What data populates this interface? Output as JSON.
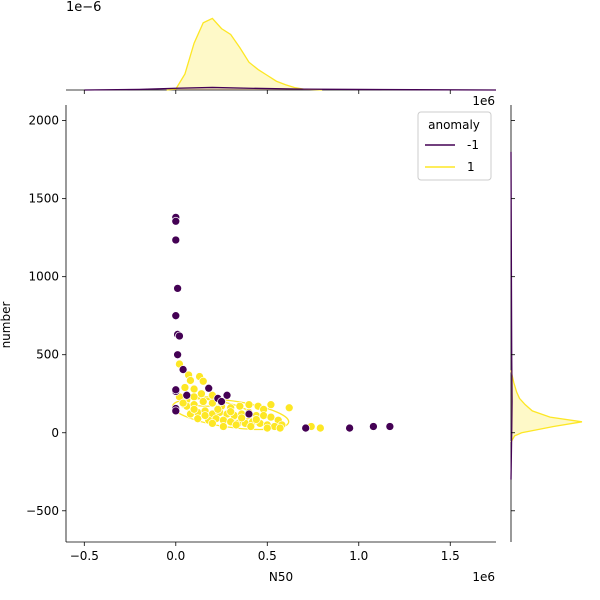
{
  "chart_data": {
    "type": "scatter",
    "title": "",
    "xlabel": "N50",
    "ylabel": "number",
    "x_offset_label": "1e6",
    "y_offset_label": "1e6",
    "top_marginal_offset_label": "1e−6",
    "xlim": [
      -0.6,
      1.75
    ],
    "ylim": [
      -700,
      2100
    ],
    "x_ticks": [
      -0.5,
      0.0,
      0.5,
      1.0,
      1.5
    ],
    "x_tick_labels": [
      "−0.5",
      "0.0",
      "0.5",
      "1.0",
      "1.5"
    ],
    "y_ticks": [
      -500,
      0,
      500,
      1000,
      1500,
      2000
    ],
    "y_tick_labels": [
      "−500",
      "0",
      "500",
      "1000",
      "1500",
      "2000"
    ],
    "grid": false,
    "legend": {
      "title": "anomaly",
      "placement": "top-right",
      "entries": [
        {
          "label": "-1",
          "color": "#440154"
        },
        {
          "label": "1",
          "color": "#fde725"
        }
      ]
    },
    "series": [
      {
        "name": "-1",
        "color": "#440154",
        "points": [
          [
            0.0,
            1380
          ],
          [
            0.0,
            1355
          ],
          [
            0.0,
            1235
          ],
          [
            0.01,
            925
          ],
          [
            0.0,
            750
          ],
          [
            0.01,
            630
          ],
          [
            0.02,
            620
          ],
          [
            0.01,
            500
          ],
          [
            0.04,
            405
          ],
          [
            0.0,
            265
          ],
          [
            0.0,
            275
          ],
          [
            0.0,
            155
          ],
          [
            0.0,
            140
          ],
          [
            0.06,
            240
          ],
          [
            0.18,
            285
          ],
          [
            0.23,
            220
          ],
          [
            0.28,
            240
          ],
          [
            0.25,
            200
          ],
          [
            0.4,
            120
          ],
          [
            0.71,
            30
          ],
          [
            0.95,
            30
          ],
          [
            1.08,
            40
          ],
          [
            1.17,
            40
          ]
        ]
      },
      {
        "name": "1",
        "color": "#fde725",
        "points": [
          [
            0.02,
            440
          ],
          [
            0.07,
            370
          ],
          [
            0.08,
            335
          ],
          [
            0.13,
            360
          ],
          [
            0.05,
            290
          ],
          [
            0.1,
            280
          ],
          [
            0.02,
            230
          ],
          [
            0.06,
            210
          ],
          [
            0.1,
            230
          ],
          [
            0.14,
            250
          ],
          [
            0.2,
            240
          ],
          [
            0.06,
            170
          ],
          [
            0.1,
            180
          ],
          [
            0.15,
            200
          ],
          [
            0.2,
            190
          ],
          [
            0.25,
            170
          ],
          [
            0.3,
            160
          ],
          [
            0.35,
            170
          ],
          [
            0.4,
            180
          ],
          [
            0.45,
            170
          ],
          [
            0.48,
            150
          ],
          [
            0.52,
            180
          ],
          [
            0.08,
            120
          ],
          [
            0.12,
            130
          ],
          [
            0.16,
            140
          ],
          [
            0.2,
            120
          ],
          [
            0.24,
            130
          ],
          [
            0.28,
            120
          ],
          [
            0.32,
            110
          ],
          [
            0.36,
            120
          ],
          [
            0.4,
            130
          ],
          [
            0.44,
            110
          ],
          [
            0.48,
            110
          ],
          [
            0.52,
            100
          ],
          [
            0.56,
            80
          ],
          [
            0.12,
            90
          ],
          [
            0.18,
            80
          ],
          [
            0.22,
            90
          ],
          [
            0.26,
            80
          ],
          [
            0.3,
            70
          ],
          [
            0.34,
            60
          ],
          [
            0.38,
            60
          ],
          [
            0.42,
            70
          ],
          [
            0.46,
            60
          ],
          [
            0.5,
            50
          ],
          [
            0.54,
            40
          ],
          [
            0.58,
            50
          ],
          [
            0.62,
            160
          ],
          [
            0.2,
            60
          ],
          [
            0.26,
            40
          ],
          [
            0.33,
            50
          ],
          [
            0.41,
            40
          ],
          [
            0.5,
            30
          ],
          [
            0.57,
            30
          ],
          [
            0.74,
            40
          ],
          [
            0.79,
            30
          ],
          [
            0.1,
            150
          ],
          [
            0.16,
            110
          ],
          [
            0.23,
            150
          ],
          [
            0.3,
            135
          ],
          [
            0.36,
            95
          ],
          [
            0.44,
            85
          ],
          [
            0.15,
            330
          ],
          [
            0.24,
            210
          ],
          [
            0.04,
            190
          ]
        ]
      }
    ],
    "kde_contours": {
      "anomaly_1": {
        "color": "#fde725",
        "ellipses": [
          {
            "cx": 0.3,
            "cy": 120,
            "rx": 0.32,
            "ry": 85,
            "rotation_deg": 8
          },
          {
            "cx": 0.22,
            "cy": 150,
            "rx": 0.2,
            "ry": 55,
            "rotation_deg": 10
          },
          {
            "cx": 0.17,
            "cy": 200,
            "rx": 0.1,
            "ry": 30,
            "rotation_deg": 0
          }
        ]
      }
    },
    "marginal_x": {
      "unit_scale": "1e−6",
      "kde_anomaly_1": [
        [
          -0.05,
          0.0
        ],
        [
          0.0,
          0.03
        ],
        [
          0.05,
          0.55
        ],
        [
          0.1,
          1.6
        ],
        [
          0.15,
          2.3
        ],
        [
          0.2,
          2.45
        ],
        [
          0.25,
          2.1
        ],
        [
          0.3,
          1.9
        ],
        [
          0.35,
          1.45
        ],
        [
          0.4,
          0.95
        ],
        [
          0.45,
          0.7
        ],
        [
          0.5,
          0.5
        ],
        [
          0.55,
          0.3
        ],
        [
          0.6,
          0.18
        ],
        [
          0.65,
          0.08
        ],
        [
          0.7,
          0.03
        ],
        [
          0.8,
          0.0
        ]
      ],
      "kde_anomaly_minus1": [
        [
          -0.5,
          0.0
        ],
        [
          -0.2,
          0.02
        ],
        [
          0.0,
          0.06
        ],
        [
          0.2,
          0.09
        ],
        [
          0.4,
          0.06
        ],
        [
          0.7,
          0.03
        ],
        [
          1.0,
          0.02
        ],
        [
          1.3,
          0.01
        ],
        [
          1.75,
          0.0
        ]
      ],
      "max": 2.6
    },
    "marginal_y": {
      "kde_anomaly_1": [
        [
          -60,
          0.0
        ],
        [
          -20,
          0.05
        ],
        [
          0,
          0.15
        ],
        [
          40,
          0.6
        ],
        [
          70,
          1.0
        ],
        [
          100,
          0.55
        ],
        [
          140,
          0.3
        ],
        [
          180,
          0.2
        ],
        [
          220,
          0.12
        ],
        [
          260,
          0.08
        ],
        [
          320,
          0.04
        ],
        [
          400,
          0.0
        ]
      ],
      "kde_anomaly_minus1": [
        [
          -300,
          0.0
        ],
        [
          0,
          0.01
        ],
        [
          200,
          0.015
        ],
        [
          500,
          0.01
        ],
        [
          1000,
          0.006
        ],
        [
          1400,
          0.003
        ],
        [
          1800,
          0.0
        ]
      ],
      "max": 1.0
    }
  }
}
